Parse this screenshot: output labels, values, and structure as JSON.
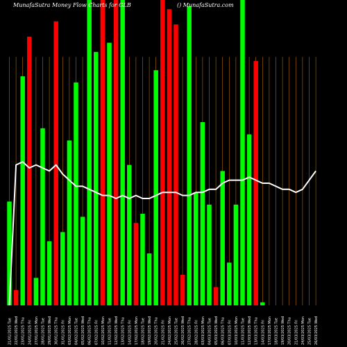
{
  "header": {
    "title_left": "MunafaSutra  Money Flow  Charts for GLB",
    "title_right": "() MunafaSutra.com"
  },
  "colors": {
    "background": "#000000",
    "up": "#00ff00",
    "down": "#ff0000",
    "grid": "#b86a00",
    "line": "#ffffff",
    "label": "#ffffff"
  },
  "chart_data": {
    "type": "bar",
    "grid": "vertical",
    "ylim": [
      0,
      100
    ],
    "categories": [
      "21/01/2025",
      "22/01/2025",
      "23/01/2025",
      "24/01/2025",
      "27/01/2025",
      "28/01/2025",
      "29/01/2025",
      "30/01/2025",
      "31/01/2025",
      "03/02/2025",
      "04/02/2025",
      "05/02/2025",
      "06/02/2025",
      "07/02/2025",
      "10/02/2025",
      "11/02/2025",
      "12/02/2025",
      "13/02/2025",
      "14/02/2025",
      "17/02/2025",
      "18/02/2025",
      "19/02/2025",
      "20/02/2025",
      "21/02/2025",
      "24/02/2025",
      "25/02/2025",
      "26/02/2025",
      "27/02/2025",
      "28/02/2025",
      "03/03/2025",
      "04/03/2025",
      "05/03/2025",
      "06/03/2025",
      "07/03/2025",
      "10/03/2025",
      "11/03/2025",
      "12/03/2025",
      "13/03/2025",
      "14/03/2025",
      "17/03/2025",
      "18/03/2025",
      "19/03/2025",
      "20/03/2025",
      "21/03/2025",
      "24/03/2025",
      "25/03/2025",
      "26/03/2025"
    ],
    "tick_labels": [
      "21/01/2025 Tue",
      "22/01/2025 Wed",
      "23/01/2025 Thu",
      "24/01/2025 Fri",
      "27/01/2025 Mon",
      "28/01/2025 Tue",
      "29/01/2025 Wed",
      "30/01/2025 Thu",
      "31/01/2025 Fri",
      "03/02/2025 Mon",
      "04/02/2025 Tue",
      "05/02/2025 Wed",
      "06/02/2025 Thu",
      "07/02/2025 Fri",
      "10/02/2025 Mon",
      "11/02/2025 Tue",
      "12/02/2025 Wed",
      "13/02/2025 Thu",
      "14/02/2025 Fri",
      "17/02/2025 Mon",
      "18/02/2025 Tue",
      "19/02/2025 Wed",
      "20/02/2025 Thu",
      "21/02/2025 Fri",
      "24/02/2025 Mon",
      "25/02/2025 Tue",
      "26/02/2025 Wed",
      "27/02/2025 Thu",
      "28/02/2025 Fri",
      "03/03/2025 Mon",
      "04/03/2025 Tue",
      "05/03/2025 Wed",
      "06/03/2025 Thu",
      "07/03/2025 Fri",
      "10/03/2025 Mon",
      "11/03/2025 Tue",
      "12/03/2025 Wed",
      "13/03/2025 Thu",
      "14/03/2025 Fri",
      "17/03/2025 Mon",
      "18/03/2025 Tue",
      "19/03/2025 Wed",
      "20/03/2025 Thu",
      "21/03/2025 Fri",
      "24/03/2025 Mon",
      "25/03/2025 Tue",
      "26/03/2025 Wed"
    ],
    "values": [
      34,
      5,
      75,
      88,
      9,
      58,
      21,
      93,
      24,
      54,
      73,
      29,
      100,
      83,
      100,
      86,
      100,
      100,
      46,
      27,
      30,
      17,
      77,
      100,
      97,
      92,
      10,
      98,
      37,
      60,
      33,
      6,
      44,
      14,
      33,
      100,
      56,
      80,
      1,
      0,
      0,
      0,
      0,
      0,
      0,
      0,
      0
    ],
    "directions": [
      "up",
      "down",
      "up",
      "down",
      "up",
      "up",
      "up",
      "down",
      "up",
      "up",
      "up",
      "up",
      "up",
      "up",
      "down",
      "up",
      "down",
      "up",
      "up",
      "down",
      "up",
      "up",
      "up",
      "down",
      "down",
      "down",
      "down",
      "up",
      "up",
      "up",
      "up",
      "down",
      "up",
      "up",
      "up",
      "up",
      "up",
      "down",
      "up",
      "up",
      "up",
      "up",
      "up",
      "up",
      "up",
      "up",
      "up"
    ],
    "series": [
      {
        "type": "line",
        "values": [
          0,
          46,
          47,
          45,
          46,
          45,
          44,
          46,
          43,
          41,
          39,
          39,
          38,
          37,
          36,
          36,
          35,
          36,
          35,
          36,
          35,
          35,
          36,
          37,
          37,
          37,
          36,
          36,
          37,
          37,
          38,
          38,
          40,
          41,
          41,
          41,
          42,
          41,
          40,
          40,
          39,
          38,
          38,
          37,
          38,
          41,
          44
        ]
      }
    ]
  }
}
